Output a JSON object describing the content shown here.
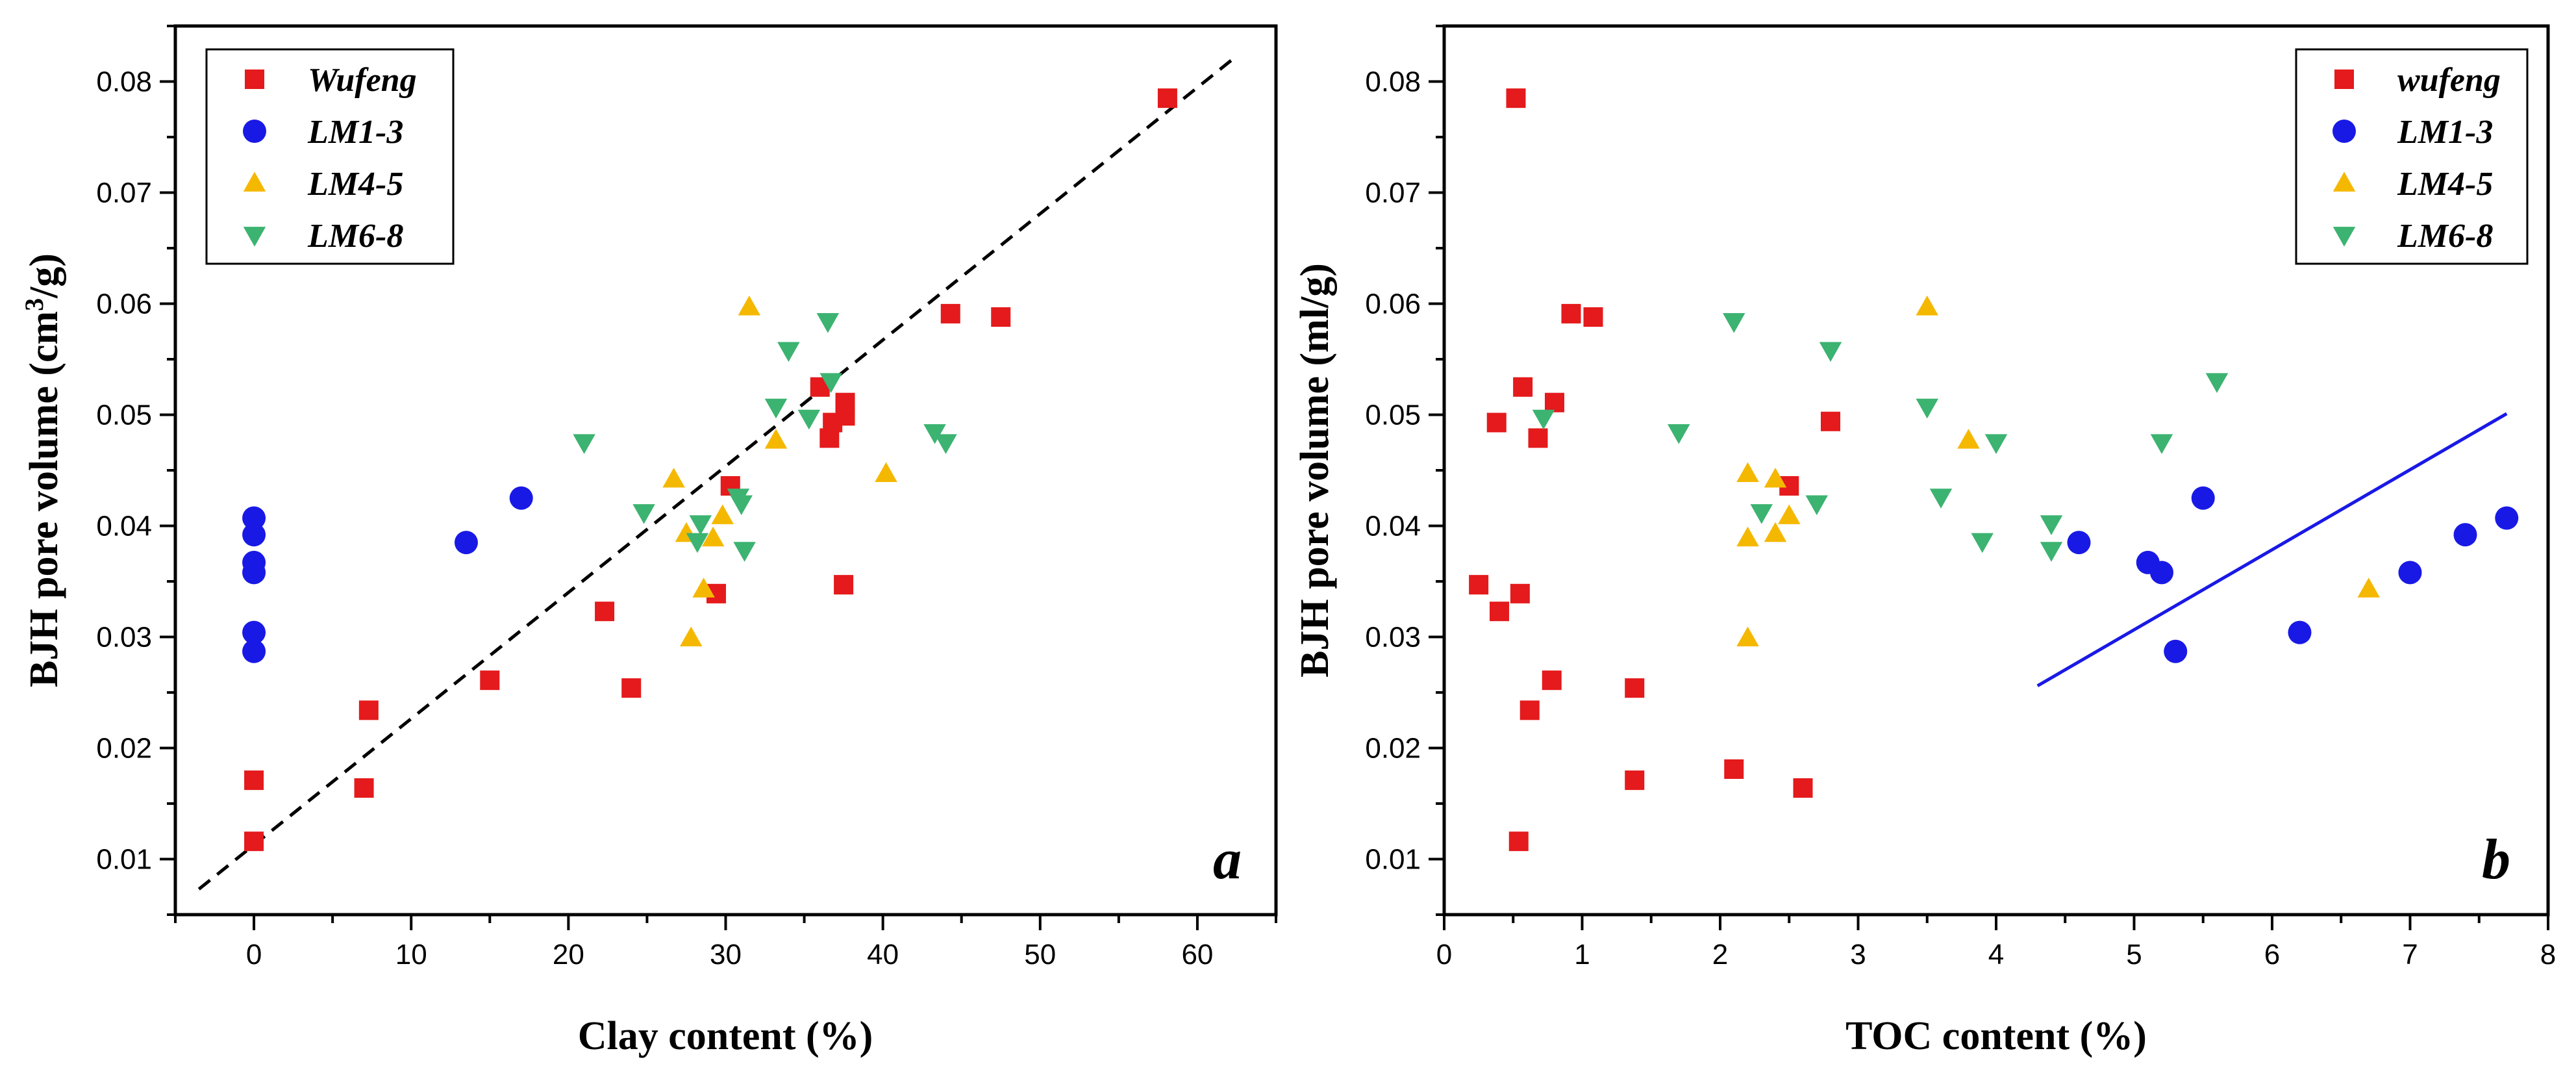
{
  "chart_data": [
    {
      "type": "scatter",
      "panel": "a",
      "xlabel": "Clay content (%)",
      "ylabel_main": "BJH pore volume (cm",
      "ylabel_sup": "3",
      "ylabel_end": "/g)",
      "xlim": [
        -5,
        65
      ],
      "ylim": [
        0.005,
        0.085
      ],
      "xticks": [
        0,
        10,
        20,
        30,
        40,
        50,
        60
      ],
      "yticks": [
        0.01,
        0.02,
        0.03,
        0.04,
        0.05,
        0.06,
        0.07,
        0.08
      ],
      "legend_position": "top-left",
      "fit_line": {
        "style": "dashed",
        "color": "#000000",
        "x": [
          -3.5,
          62.5
        ],
        "y": [
          0.0073,
          0.0823
        ]
      },
      "series": [
        {
          "name": "Wufeng",
          "marker": "square",
          "color": "#e41a1c",
          "points": [
            [
              0,
              0.0116
            ],
            [
              0,
              0.0171
            ],
            [
              7,
              0.0164
            ],
            [
              7.3,
              0.0234
            ],
            [
              15,
              0.0261
            ],
            [
              22.3,
              0.0323
            ],
            [
              24,
              0.0254
            ],
            [
              29.4,
              0.0339
            ],
            [
              30.3,
              0.0436
            ],
            [
              36,
              0.0525
            ],
            [
              36.6,
              0.0479
            ],
            [
              36.8,
              0.0493
            ],
            [
              37.5,
              0.0347
            ],
            [
              37.6,
              0.0499
            ],
            [
              37.6,
              0.0511
            ],
            [
              44.3,
              0.0591
            ],
            [
              47.5,
              0.0588
            ],
            [
              58.1,
              0.0785
            ]
          ]
        },
        {
          "name": "LM1-3",
          "marker": "circle",
          "color": "#1919e6",
          "points": [
            [
              0,
              0.0287
            ],
            [
              0,
              0.0304
            ],
            [
              0,
              0.0358
            ],
            [
              0,
              0.0367
            ],
            [
              0,
              0.0392
            ],
            [
              0,
              0.0407
            ],
            [
              13.5,
              0.0385
            ],
            [
              17,
              0.0425
            ]
          ]
        },
        {
          "name": "LM4-5",
          "marker": "triangle-up",
          "color": "#f5b800",
          "points": [
            [
              26.7,
              0.0442
            ],
            [
              27.5,
              0.0393
            ],
            [
              27.8,
              0.0299
            ],
            [
              28.6,
              0.0343
            ],
            [
              29.2,
              0.0389
            ],
            [
              29.8,
              0.0409
            ],
            [
              31.5,
              0.0597
            ],
            [
              33.2,
              0.0477
            ],
            [
              40.2,
              0.0447
            ]
          ]
        },
        {
          "name": "LM6-8",
          "marker": "triangle-down",
          "color": "#3cb371",
          "points": [
            [
              21,
              0.0475
            ],
            [
              24.8,
              0.0412
            ],
            [
              28.2,
              0.0386
            ],
            [
              28.4,
              0.0402
            ],
            [
              30.8,
              0.0426
            ],
            [
              31,
              0.042
            ],
            [
              31.2,
              0.0378
            ],
            [
              33.2,
              0.0507
            ],
            [
              34,
              0.0558
            ],
            [
              35.3,
              0.0497
            ],
            [
              36.5,
              0.0584
            ],
            [
              36.7,
              0.053
            ],
            [
              43.3,
              0.0484
            ],
            [
              44,
              0.0475
            ]
          ]
        }
      ]
    },
    {
      "type": "scatter",
      "panel": "b",
      "xlabel": "TOC content (%)",
      "ylabel_main": "BJH pore volume (ml/g)",
      "xlim": [
        0,
        8
      ],
      "ylim": [
        0.005,
        0.085
      ],
      "xticks": [
        0,
        1,
        2,
        3,
        4,
        5,
        6,
        7,
        8
      ],
      "yticks": [
        0.01,
        0.02,
        0.03,
        0.04,
        0.05,
        0.06,
        0.07,
        0.08
      ],
      "legend_position": "top-right",
      "fit_line": {
        "style": "solid",
        "color": "#1919e6",
        "x": [
          4.3,
          7.7
        ],
        "y": [
          0.0256,
          0.0501
        ]
      },
      "series": [
        {
          "name": "wufeng",
          "marker": "square",
          "color": "#e41a1c",
          "points": [
            [
              0.25,
              0.0347
            ],
            [
              0.38,
              0.0493
            ],
            [
              0.4,
              0.0323
            ],
            [
              0.52,
              0.0785
            ],
            [
              0.54,
              0.0116
            ],
            [
              0.55,
              0.0339
            ],
            [
              0.57,
              0.0525
            ],
            [
              0.62,
              0.0234
            ],
            [
              0.68,
              0.0479
            ],
            [
              0.78,
              0.0261
            ],
            [
              0.8,
              0.0511
            ],
            [
              0.92,
              0.0591
            ],
            [
              1.08,
              0.0588
            ],
            [
              1.38,
              0.0254
            ],
            [
              1.38,
              0.0171
            ],
            [
              2.1,
              0.0181
            ],
            [
              2.5,
              0.0436
            ],
            [
              2.6,
              0.0164
            ],
            [
              2.8,
              0.0494
            ]
          ]
        },
        {
          "name": "LM1-3",
          "marker": "circle",
          "color": "#1919e6",
          "points": [
            [
              4.6,
              0.0385
            ],
            [
              5.1,
              0.0367
            ],
            [
              5.2,
              0.0358
            ],
            [
              5.3,
              0.0287
            ],
            [
              5.5,
              0.0425
            ],
            [
              6.2,
              0.0304
            ],
            [
              7,
              0.0358
            ],
            [
              7.4,
              0.0392
            ],
            [
              7.7,
              0.0407
            ]
          ]
        },
        {
          "name": "LM4-5",
          "marker": "triangle-up",
          "color": "#f5b800",
          "points": [
            [
              2.2,
              0.0447
            ],
            [
              2.2,
              0.0389
            ],
            [
              2.2,
              0.0299
            ],
            [
              2.4,
              0.0442
            ],
            [
              2.4,
              0.0393
            ],
            [
              2.5,
              0.0409
            ],
            [
              3.5,
              0.0597
            ],
            [
              3.8,
              0.0477
            ],
            [
              6.7,
              0.0343
            ]
          ]
        },
        {
          "name": "LM6-8",
          "marker": "triangle-down",
          "color": "#3cb371",
          "points": [
            [
              0.72,
              0.0497
            ],
            [
              1.7,
              0.0484
            ],
            [
              2.1,
              0.0584
            ],
            [
              2.3,
              0.0412
            ],
            [
              2.7,
              0.042
            ],
            [
              2.8,
              0.0558
            ],
            [
              3.5,
              0.0507
            ],
            [
              3.6,
              0.0426
            ],
            [
              3.9,
              0.0386
            ],
            [
              4,
              0.0475
            ],
            [
              4.4,
              0.0402
            ],
            [
              4.4,
              0.0378
            ],
            [
              5.2,
              0.0475
            ],
            [
              5.6,
              0.053
            ]
          ]
        }
      ]
    }
  ]
}
